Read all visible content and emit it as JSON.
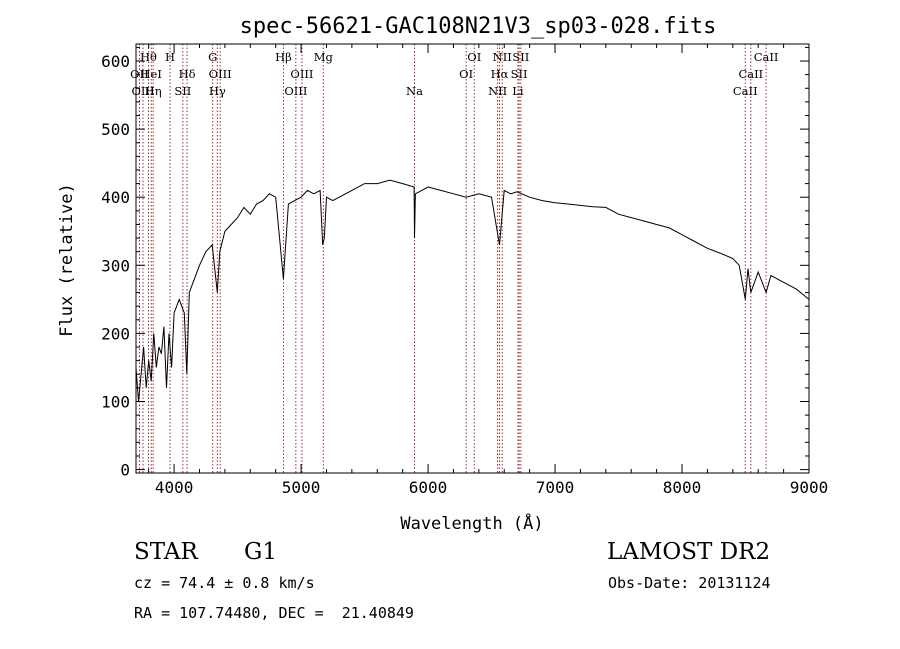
{
  "chart_data": {
    "type": "line",
    "title": "spec-56621-GAC108N21V3_sp03-028.fits",
    "xlabel": "Wavelength (Å)",
    "ylabel": "Flux (relative)",
    "xlim": [
      3700,
      9000
    ],
    "ylim": [
      -5,
      625
    ],
    "xticks": [
      4000,
      5000,
      6000,
      7000,
      8000,
      9000
    ],
    "yticks": [
      0,
      100,
      200,
      300,
      400,
      500,
      600
    ],
    "grid": false,
    "line_color": "#000000",
    "marker_color": "#8b1a1a",
    "spectrum": {
      "x": [
        3700,
        3720,
        3740,
        3760,
        3780,
        3800,
        3820,
        3840,
        3860,
        3880,
        3900,
        3920,
        3940,
        3960,
        3980,
        4000,
        4040,
        4080,
        4100,
        4120,
        4160,
        4200,
        4250,
        4300,
        4340,
        4360,
        4400,
        4450,
        4500,
        4550,
        4600,
        4650,
        4700,
        4750,
        4800,
        4861,
        4900,
        4950,
        5000,
        5050,
        5100,
        5150,
        5170,
        5183,
        5200,
        5250,
        5300,
        5400,
        5500,
        5600,
        5700,
        5800,
        5890,
        5893,
        5900,
        5950,
        6000,
        6100,
        6200,
        6300,
        6400,
        6500,
        6563,
        6600,
        6650,
        6700,
        6800,
        6900,
        7000,
        7100,
        7200,
        7300,
        7400,
        7500,
        7600,
        7700,
        7800,
        7900,
        8000,
        8100,
        8200,
        8300,
        8400,
        8450,
        8498,
        8520,
        8542,
        8600,
        8662,
        8700,
        8800,
        8900,
        9000
      ],
      "y": [
        150,
        100,
        140,
        180,
        120,
        160,
        130,
        200,
        150,
        180,
        170,
        210,
        120,
        200,
        150,
        230,
        250,
        230,
        140,
        260,
        280,
        300,
        320,
        330,
        260,
        320,
        350,
        360,
        370,
        385,
        375,
        390,
        395,
        405,
        400,
        280,
        390,
        395,
        400,
        410,
        405,
        410,
        330,
        340,
        400,
        395,
        400,
        410,
        420,
        420,
        425,
        420,
        415,
        340,
        405,
        410,
        415,
        410,
        405,
        400,
        405,
        400,
        330,
        410,
        405,
        408,
        400,
        395,
        392,
        390,
        388,
        386,
        385,
        375,
        370,
        365,
        360,
        355,
        345,
        335,
        325,
        318,
        310,
        300,
        250,
        295,
        260,
        290,
        260,
        285,
        275,
        265,
        250
      ]
    },
    "lines": [
      {
        "label": "Hθ",
        "x": 3798,
        "row": 0
      },
      {
        "label": "OII",
        "x": 3727,
        "row": 1
      },
      {
        "label": "HeI",
        "x": 3820,
        "row": 1
      },
      {
        "label": "OIII",
        "x": 3755,
        "row": 2
      },
      {
        "label": "Hη",
        "x": 3835,
        "row": 2
      },
      {
        "label": "H",
        "x": 3968,
        "row": 0
      },
      {
        "label": "Hδ",
        "x": 4102,
        "row": 1
      },
      {
        "label": "SII",
        "x": 4069,
        "row": 2
      },
      {
        "label": "G",
        "x": 4304,
        "row": 0
      },
      {
        "label": "OIII",
        "x": 4363,
        "row": 1
      },
      {
        "label": "Hγ",
        "x": 4340,
        "row": 2
      },
      {
        "label": "Hβ",
        "x": 4861,
        "row": 0
      },
      {
        "label": "OIII",
        "x": 5007,
        "row": 1
      },
      {
        "label": "OIII",
        "x": 4959,
        "row": 2
      },
      {
        "label": "Mg",
        "x": 5175,
        "row": 0
      },
      {
        "label": "Na",
        "x": 5893,
        "row": 2
      },
      {
        "label": "OI",
        "x": 6364,
        "row": 0
      },
      {
        "label": "OI",
        "x": 6300,
        "row": 1
      },
      {
        "label": "NII",
        "x": 6584,
        "row": 0
      },
      {
        "label": "Hα",
        "x": 6563,
        "row": 1
      },
      {
        "label": "NII",
        "x": 6548,
        "row": 2
      },
      {
        "label": "SII",
        "x": 6731,
        "row": 0
      },
      {
        "label": "SII",
        "x": 6717,
        "row": 1
      },
      {
        "label": "Li",
        "x": 6708,
        "row": 2
      },
      {
        "label": "CaII",
        "x": 8662,
        "row": 0
      },
      {
        "label": "CaII",
        "x": 8542,
        "row": 1
      },
      {
        "label": "CaII",
        "x": 8498,
        "row": 2
      }
    ]
  },
  "info": {
    "class": "STAR",
    "subclass": "G1",
    "survey": "LAMOST DR2",
    "cz": "cz = 74.4 ± 0.8 km/s",
    "obs_date": "Obs-Date: 20131124",
    "coords": "RA = 107.74480, DEC =  21.40849"
  }
}
